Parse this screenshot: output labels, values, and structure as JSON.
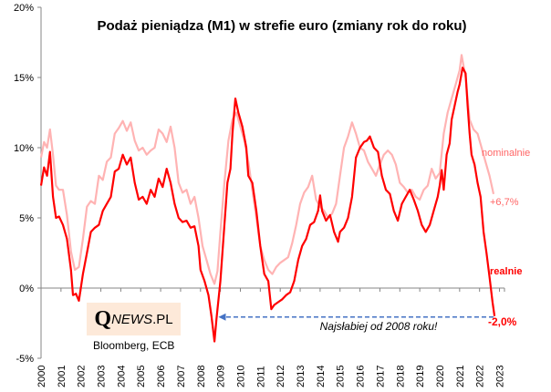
{
  "chart_data": {
    "type": "line",
    "title": "Podaż pieniądza (M1) w strefie euro (zmiany rok do roku)",
    "xlabel": "",
    "ylabel": "",
    "xlim": [
      2000,
      2023.3
    ],
    "ylim": [
      -5,
      20
    ],
    "y_ticks": [
      "-5%",
      "0%",
      "5%",
      "10%",
      "15%",
      "20%"
    ],
    "y_tick_values": [
      -5,
      0,
      5,
      10,
      15,
      20
    ],
    "x_ticks": [
      "2000",
      "2001",
      "2002",
      "2003",
      "2004",
      "2005",
      "2006",
      "2007",
      "2008",
      "2009",
      "2010",
      "2011",
      "2012",
      "2013",
      "2014",
      "2015",
      "2016",
      "2017",
      "2018",
      "2019",
      "2020",
      "2021",
      "2022",
      "2023"
    ],
    "grid": false,
    "legend": "inline-right",
    "series": [
      {
        "name": "nominalnie",
        "color": "#ffb3b3",
        "end_label": "+6,7%",
        "points": [
          [
            2000.0,
            9.3
          ],
          [
            2000.15,
            10.4
          ],
          [
            2000.3,
            10.0
          ],
          [
            2000.45,
            11.3
          ],
          [
            2000.6,
            9.5
          ],
          [
            2000.75,
            7.3
          ],
          [
            2000.9,
            7.0
          ],
          [
            2001.1,
            7.0
          ],
          [
            2001.3,
            5.2
          ],
          [
            2001.5,
            2.6
          ],
          [
            2001.7,
            1.3
          ],
          [
            2001.9,
            1.5
          ],
          [
            2002.1,
            3.5
          ],
          [
            2002.3,
            5.8
          ],
          [
            2002.5,
            6.2
          ],
          [
            2002.7,
            6.0
          ],
          [
            2002.9,
            8.0
          ],
          [
            2003.1,
            7.7
          ],
          [
            2003.3,
            9.0
          ],
          [
            2003.5,
            9.3
          ],
          [
            2003.7,
            11.0
          ],
          [
            2003.9,
            11.4
          ],
          [
            2004.1,
            11.9
          ],
          [
            2004.3,
            11.2
          ],
          [
            2004.5,
            11.8
          ],
          [
            2004.7,
            10.5
          ],
          [
            2004.9,
            9.8
          ],
          [
            2005.1,
            10.0
          ],
          [
            2005.3,
            9.5
          ],
          [
            2005.5,
            9.8
          ],
          [
            2005.7,
            10.0
          ],
          [
            2005.9,
            11.3
          ],
          [
            2006.1,
            11.0
          ],
          [
            2006.3,
            10.4
          ],
          [
            2006.5,
            11.5
          ],
          [
            2006.7,
            10.0
          ],
          [
            2006.9,
            7.5
          ],
          [
            2007.1,
            6.8
          ],
          [
            2007.3,
            7.0
          ],
          [
            2007.5,
            6.0
          ],
          [
            2007.7,
            6.5
          ],
          [
            2007.9,
            5.0
          ],
          [
            2008.1,
            3.0
          ],
          [
            2008.3,
            2.0
          ],
          [
            2008.5,
            1.0
          ],
          [
            2008.7,
            0.3
          ],
          [
            2008.85,
            1.2
          ],
          [
            2009.0,
            4.0
          ],
          [
            2009.2,
            7.5
          ],
          [
            2009.4,
            10.5
          ],
          [
            2009.6,
            12.0
          ],
          [
            2009.8,
            12.5
          ],
          [
            2010.0,
            11.5
          ],
          [
            2010.2,
            10.5
          ],
          [
            2010.4,
            9.0
          ],
          [
            2010.6,
            7.0
          ],
          [
            2010.8,
            5.0
          ],
          [
            2011.0,
            3.0
          ],
          [
            2011.2,
            2.0
          ],
          [
            2011.4,
            1.3
          ],
          [
            2011.6,
            1.0
          ],
          [
            2011.8,
            1.5
          ],
          [
            2012.0,
            1.8
          ],
          [
            2012.2,
            2.0
          ],
          [
            2012.4,
            2.2
          ],
          [
            2012.6,
            3.2
          ],
          [
            2012.8,
            4.5
          ],
          [
            2013.0,
            6.0
          ],
          [
            2013.2,
            6.8
          ],
          [
            2013.4,
            7.2
          ],
          [
            2013.6,
            8.0
          ],
          [
            2013.8,
            6.3
          ],
          [
            2014.0,
            5.8
          ],
          [
            2014.2,
            5.5
          ],
          [
            2014.4,
            5.0
          ],
          [
            2014.6,
            5.3
          ],
          [
            2014.8,
            6.0
          ],
          [
            2015.0,
            8.0
          ],
          [
            2015.2,
            10.0
          ],
          [
            2015.4,
            10.8
          ],
          [
            2015.6,
            11.8
          ],
          [
            2015.8,
            11.0
          ],
          [
            2016.0,
            10.0
          ],
          [
            2016.2,
            9.8
          ],
          [
            2016.4,
            9.0
          ],
          [
            2016.6,
            8.5
          ],
          [
            2016.8,
            8.0
          ],
          [
            2017.0,
            8.8
          ],
          [
            2017.2,
            9.5
          ],
          [
            2017.4,
            9.8
          ],
          [
            2017.6,
            9.5
          ],
          [
            2017.8,
            8.8
          ],
          [
            2018.0,
            7.5
          ],
          [
            2018.2,
            7.2
          ],
          [
            2018.4,
            6.8
          ],
          [
            2018.6,
            7.0
          ],
          [
            2018.8,
            6.5
          ],
          [
            2019.0,
            6.3
          ],
          [
            2019.2,
            7.0
          ],
          [
            2019.4,
            7.3
          ],
          [
            2019.6,
            8.5
          ],
          [
            2019.8,
            7.8
          ],
          [
            2020.0,
            8.2
          ],
          [
            2020.2,
            11.0
          ],
          [
            2020.4,
            12.5
          ],
          [
            2020.6,
            13.5
          ],
          [
            2020.8,
            14.5
          ],
          [
            2021.0,
            15.5
          ],
          [
            2021.1,
            16.6
          ],
          [
            2021.3,
            15.0
          ],
          [
            2021.5,
            12.0
          ],
          [
            2021.7,
            11.3
          ],
          [
            2021.9,
            11.0
          ],
          [
            2022.1,
            10.0
          ],
          [
            2022.3,
            9.0
          ],
          [
            2022.5,
            8.0
          ],
          [
            2022.7,
            6.7
          ]
        ]
      },
      {
        "name": "realnie",
        "color": "#ff0000",
        "end_label": "-2,0%",
        "points": [
          [
            2000.0,
            7.3
          ],
          [
            2000.15,
            8.6
          ],
          [
            2000.3,
            8.0
          ],
          [
            2000.45,
            9.7
          ],
          [
            2000.6,
            6.5
          ],
          [
            2000.75,
            5.0
          ],
          [
            2000.9,
            5.1
          ],
          [
            2001.1,
            4.5
          ],
          [
            2001.3,
            3.5
          ],
          [
            2001.5,
            1.3
          ],
          [
            2001.6,
            -0.5
          ],
          [
            2001.75,
            -0.4
          ],
          [
            2001.9,
            -0.9
          ],
          [
            2002.1,
            1.0
          ],
          [
            2002.3,
            2.5
          ],
          [
            2002.5,
            4.0
          ],
          [
            2002.7,
            4.3
          ],
          [
            2002.9,
            4.5
          ],
          [
            2003.1,
            5.5
          ],
          [
            2003.3,
            6.0
          ],
          [
            2003.5,
            6.5
          ],
          [
            2003.7,
            8.3
          ],
          [
            2003.9,
            8.5
          ],
          [
            2004.1,
            9.5
          ],
          [
            2004.3,
            8.8
          ],
          [
            2004.5,
            9.3
          ],
          [
            2004.7,
            7.5
          ],
          [
            2004.9,
            6.3
          ],
          [
            2005.1,
            6.5
          ],
          [
            2005.3,
            6.0
          ],
          [
            2005.5,
            7.0
          ],
          [
            2005.7,
            6.5
          ],
          [
            2005.9,
            7.8
          ],
          [
            2006.1,
            7.2
          ],
          [
            2006.3,
            8.5
          ],
          [
            2006.5,
            7.5
          ],
          [
            2006.7,
            6.0
          ],
          [
            2006.9,
            5.0
          ],
          [
            2007.1,
            4.7
          ],
          [
            2007.3,
            4.8
          ],
          [
            2007.5,
            4.3
          ],
          [
            2007.7,
            4.4
          ],
          [
            2007.9,
            3.0
          ],
          [
            2008.0,
            1.3
          ],
          [
            2008.2,
            0.5
          ],
          [
            2008.4,
            -0.5
          ],
          [
            2008.55,
            -2.0
          ],
          [
            2008.7,
            -3.8
          ],
          [
            2008.8,
            -2.2
          ],
          [
            2009.0,
            0.5
          ],
          [
            2009.2,
            4.5
          ],
          [
            2009.35,
            7.5
          ],
          [
            2009.5,
            8.5
          ],
          [
            2009.6,
            11.0
          ],
          [
            2009.75,
            13.5
          ],
          [
            2009.9,
            12.5
          ],
          [
            2010.1,
            11.5
          ],
          [
            2010.3,
            10.0
          ],
          [
            2010.4,
            8.0
          ],
          [
            2010.6,
            7.5
          ],
          [
            2010.8,
            5.5
          ],
          [
            2011.0,
            3.0
          ],
          [
            2011.2,
            1.0
          ],
          [
            2011.4,
            0.5
          ],
          [
            2011.55,
            -1.5
          ],
          [
            2011.7,
            -1.2
          ],
          [
            2011.9,
            -1.0
          ],
          [
            2012.1,
            -0.8
          ],
          [
            2012.3,
            -0.5
          ],
          [
            2012.5,
            -0.3
          ],
          [
            2012.7,
            0.5
          ],
          [
            2012.9,
            2.0
          ],
          [
            2013.1,
            3.0
          ],
          [
            2013.3,
            3.5
          ],
          [
            2013.5,
            4.5
          ],
          [
            2013.7,
            4.7
          ],
          [
            2013.9,
            5.5
          ],
          [
            2014.0,
            6.6
          ],
          [
            2014.1,
            5.5
          ],
          [
            2014.3,
            4.8
          ],
          [
            2014.5,
            5.2
          ],
          [
            2014.7,
            4.0
          ],
          [
            2014.9,
            3.3
          ],
          [
            2015.0,
            4.0
          ],
          [
            2015.2,
            4.3
          ],
          [
            2015.4,
            5.0
          ],
          [
            2015.6,
            6.5
          ],
          [
            2015.8,
            9.3
          ],
          [
            2016.0,
            10.0
          ],
          [
            2016.2,
            10.4
          ],
          [
            2016.35,
            10.5
          ],
          [
            2016.5,
            10.8
          ],
          [
            2016.7,
            10.0
          ],
          [
            2016.9,
            9.7
          ],
          [
            2017.1,
            8.0
          ],
          [
            2017.3,
            7.0
          ],
          [
            2017.5,
            6.7
          ],
          [
            2017.7,
            5.5
          ],
          [
            2017.9,
            4.8
          ],
          [
            2018.1,
            6.0
          ],
          [
            2018.3,
            6.5
          ],
          [
            2018.5,
            7.0
          ],
          [
            2018.7,
            6.3
          ],
          [
            2018.9,
            5.5
          ],
          [
            2019.1,
            4.5
          ],
          [
            2019.3,
            4.0
          ],
          [
            2019.5,
            4.5
          ],
          [
            2019.7,
            5.5
          ],
          [
            2019.9,
            6.5
          ],
          [
            2020.0,
            7.3
          ],
          [
            2020.1,
            8.4
          ],
          [
            2020.2,
            7.0
          ],
          [
            2020.35,
            9.5
          ],
          [
            2020.5,
            10.3
          ],
          [
            2020.6,
            12.0
          ],
          [
            2020.75,
            13.0
          ],
          [
            2020.9,
            14.0
          ],
          [
            2021.0,
            14.5
          ],
          [
            2021.15,
            15.7
          ],
          [
            2021.3,
            15.3
          ],
          [
            2021.4,
            13.0
          ],
          [
            2021.5,
            11.0
          ],
          [
            2021.6,
            9.5
          ],
          [
            2021.75,
            8.8
          ],
          [
            2021.9,
            7.5
          ],
          [
            2022.05,
            6.5
          ],
          [
            2022.2,
            4.0
          ],
          [
            2022.35,
            2.5
          ],
          [
            2022.5,
            0.8
          ],
          [
            2022.65,
            -1.0
          ],
          [
            2022.75,
            -2.0
          ]
        ]
      }
    ],
    "annotations": [
      {
        "text": "nominalnie",
        "color": "#ff6666"
      },
      {
        "text": "+6,7%",
        "color": "#ff6666"
      },
      {
        "text": "realnie",
        "color": "#ff0000"
      },
      {
        "text": "-2,0%",
        "color": "#ff0000"
      },
      {
        "text": "Najsłabiej od 2008 roku!",
        "arrow_value": -2.0,
        "arrow_from_year": 2022.7,
        "arrow_to_year": 2008.9,
        "color": "#4472c4"
      }
    ]
  },
  "branding": {
    "logo_q": "Q",
    "logo_news": "NEWS",
    "logo_pl": ".PL",
    "source": "Bloomberg, ECB"
  }
}
